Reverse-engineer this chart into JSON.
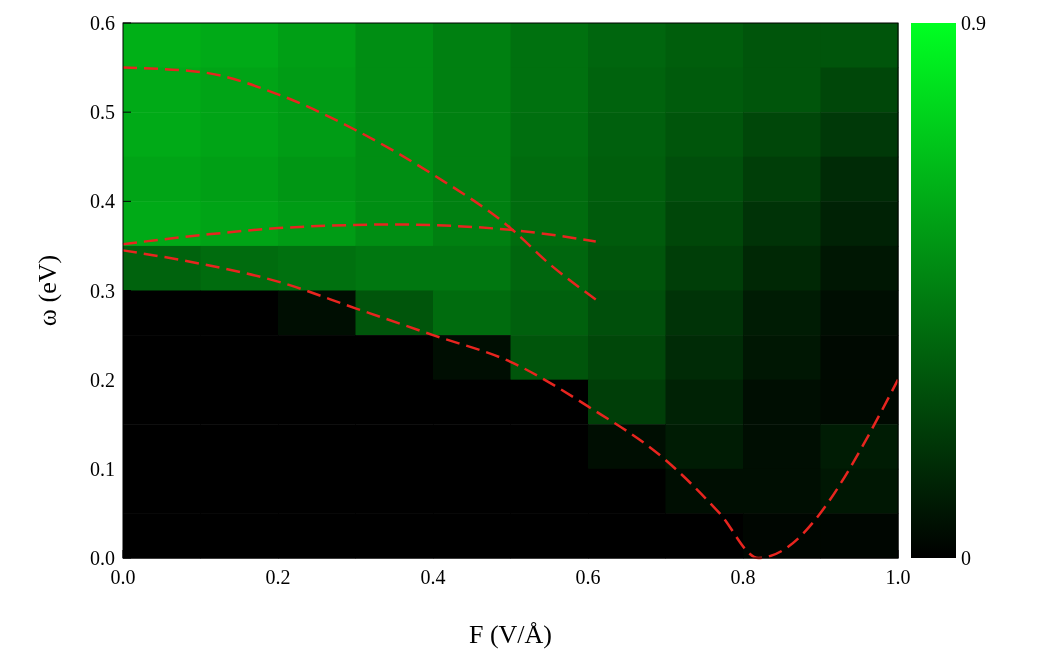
{
  "chart_data": {
    "type": "heatmap",
    "xlabel": "F (V/Å)",
    "ylabel": "ω (eV)",
    "x": [
      0.05,
      0.15,
      0.25,
      0.35,
      0.45,
      0.55,
      0.65,
      0.75,
      0.85,
      0.95
    ],
    "y": [
      0.575,
      0.525,
      0.475,
      0.425,
      0.375,
      0.325,
      0.275,
      0.225,
      0.175,
      0.125,
      0.075,
      0.025
    ],
    "cells": [
      [
        0.62,
        0.6,
        0.56,
        0.5,
        0.45,
        0.4,
        0.36,
        0.33,
        0.3,
        0.3
      ],
      [
        0.6,
        0.58,
        0.55,
        0.5,
        0.45,
        0.4,
        0.35,
        0.32,
        0.3,
        0.25
      ],
      [
        0.6,
        0.58,
        0.55,
        0.5,
        0.45,
        0.39,
        0.34,
        0.3,
        0.25,
        0.2
      ],
      [
        0.58,
        0.56,
        0.53,
        0.5,
        0.45,
        0.38,
        0.33,
        0.28,
        0.22,
        0.15
      ],
      [
        0.6,
        0.58,
        0.55,
        0.5,
        0.45,
        0.38,
        0.32,
        0.25,
        0.18,
        0.12
      ],
      [
        0.35,
        0.38,
        0.4,
        0.42,
        0.42,
        0.36,
        0.3,
        0.22,
        0.14,
        0.08
      ],
      [
        0,
        0,
        0.05,
        0.3,
        0.38,
        0.34,
        0.28,
        0.18,
        0.1,
        0.05
      ],
      [
        0,
        0,
        0,
        0,
        0.05,
        0.3,
        0.25,
        0.15,
        0.08,
        0.03
      ],
      [
        0,
        0,
        0,
        0,
        0,
        0,
        0.22,
        0.12,
        0.05,
        0.03
      ],
      [
        0,
        0,
        0,
        0,
        0,
        0,
        0.05,
        0.1,
        0.05,
        0.1
      ],
      [
        0,
        0,
        0,
        0,
        0,
        0,
        0,
        0.05,
        0.05,
        0.08
      ],
      [
        0,
        0,
        0,
        0,
        0,
        0,
        0,
        0,
        0.02,
        0.02
      ]
    ],
    "clim": [
      0,
      0.9
    ],
    "cticks": [
      0,
      0.9
    ],
    "xlim": [
      0,
      1
    ],
    "xticks": [
      {
        "value": 0,
        "label": "0.0"
      },
      {
        "value": 0.2,
        "label": "0.2"
      },
      {
        "value": 0.4,
        "label": "0.4"
      },
      {
        "value": 0.6,
        "label": "0.6"
      },
      {
        "value": 0.8,
        "label": "0.8"
      },
      {
        "value": 1,
        "label": "1.0"
      }
    ],
    "ylim": [
      0,
      0.6
    ],
    "yticks": [
      {
        "value": 0,
        "label": "0.0"
      },
      {
        "value": 0.1,
        "label": "0.1"
      },
      {
        "value": 0.2,
        "label": "0.2"
      },
      {
        "value": 0.3,
        "label": "0.3"
      },
      {
        "value": 0.4,
        "label": "0.4"
      },
      {
        "value": 0.5,
        "label": "0.5"
      },
      {
        "value": 0.6,
        "label": "0.6"
      }
    ],
    "line_style": "dashed",
    "marker": "none",
    "series": [
      {
        "type": "line",
        "color": "#e8251f",
        "x": [
          0,
          0.1,
          0.2,
          0.3,
          0.4,
          0.5,
          0.55,
          0.61
        ],
        "values": [
          0.55,
          0.545,
          0.52,
          0.48,
          0.43,
          0.37,
          0.33,
          0.29
        ]
      },
      {
        "type": "line",
        "color": "#e8251f",
        "x": [
          0,
          0.1,
          0.2,
          0.35,
          0.5,
          0.61
        ],
        "values": [
          0.352,
          0.362,
          0.37,
          0.374,
          0.368,
          0.355
        ]
      },
      {
        "type": "line",
        "color": "#e8251f",
        "x": [
          0,
          0.1,
          0.2,
          0.3,
          0.4,
          0.5,
          0.6,
          0.7,
          0.77,
          0.82,
          1
        ],
        "values": [
          0.345,
          0.33,
          0.31,
          0.28,
          0.25,
          0.22,
          0.17,
          0.11,
          0.05,
          0,
          0.2
        ]
      }
    ]
  }
}
